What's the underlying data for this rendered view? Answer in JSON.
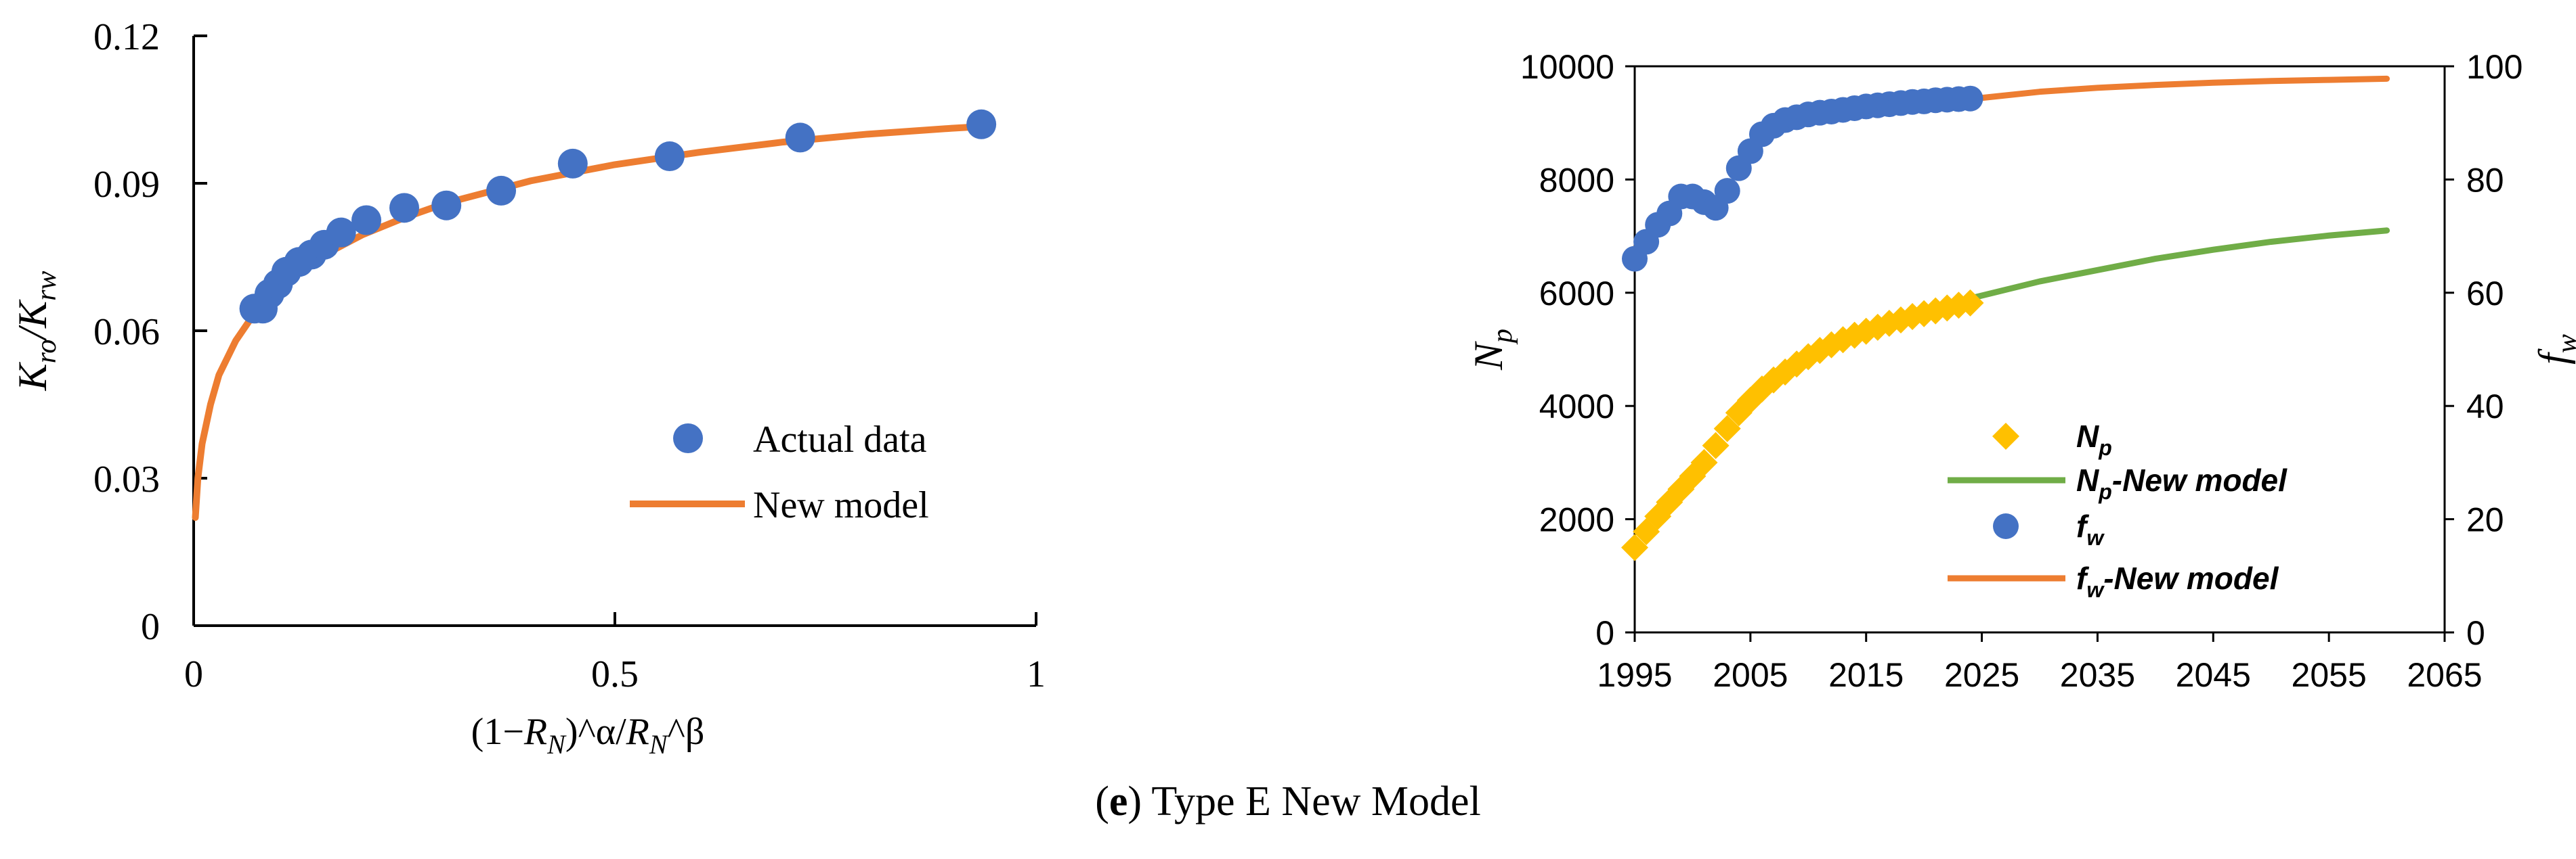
{
  "colors": {
    "blue": "#4472C4",
    "orange": "#ED7D31",
    "gold": "#FFC000",
    "green": "#70AD47",
    "axis": "#000000"
  },
  "caption": {
    "prefix": "(",
    "letter": "e",
    "rest": ") Type E New Model"
  },
  "chart_data": [
    {
      "type": "scatter",
      "x_label_parts": [
        "(1−",
        "R",
        "N",
        ")^α/",
        "R",
        "N",
        "^β"
      ],
      "y_label_parts": [
        "K",
        "ro",
        "/K",
        "rw"
      ],
      "xlim": [
        0,
        1
      ],
      "ylim": [
        0,
        0.12
      ],
      "x_ticks": [
        0,
        0.5,
        1
      ],
      "x_tick_labels": [
        "0",
        "0.5",
        "1"
      ],
      "y_ticks": [
        0,
        0.03,
        0.06,
        0.09,
        0.12
      ],
      "y_tick_labels": [
        "0",
        "0.03",
        "0.06",
        "0.09",
        "0.12"
      ],
      "grid": false,
      "legend_position": "center-right",
      "series": [
        {
          "name": "Actual data",
          "kind": "scatter",
          "color": "#4472C4",
          "x": [
            0.072,
            0.082,
            0.09,
            0.1,
            0.11,
            0.125,
            0.14,
            0.155,
            0.175,
            0.205,
            0.25,
            0.3,
            0.365,
            0.45,
            0.565,
            0.72,
            0.935
          ],
          "y": [
            0.0645,
            0.0645,
            0.0675,
            0.0695,
            0.072,
            0.074,
            0.0755,
            0.0775,
            0.08,
            0.0825,
            0.085,
            0.0855,
            0.0885,
            0.094,
            0.0955,
            0.0993,
            0.102
          ]
        },
        {
          "name": "New model",
          "kind": "line",
          "color": "#ED7D31",
          "x": [
            0.002,
            0.005,
            0.01,
            0.02,
            0.03,
            0.05,
            0.07,
            0.1,
            0.15,
            0.2,
            0.25,
            0.3,
            0.4,
            0.5,
            0.6,
            0.7,
            0.8,
            0.9,
            0.94
          ],
          "y": [
            0.022,
            0.03,
            0.037,
            0.045,
            0.051,
            0.058,
            0.063,
            0.0685,
            0.075,
            0.0795,
            0.083,
            0.086,
            0.0905,
            0.0938,
            0.0963,
            0.0984,
            0.1,
            0.1012,
            0.1016
          ]
        }
      ]
    },
    {
      "type": "scatter",
      "y_label": {
        "main": "N",
        "sub": "p"
      },
      "y2_label": {
        "main": "f",
        "sub": "w"
      },
      "xlim": [
        1995,
        2065
      ],
      "ylim": [
        0,
        10000
      ],
      "y2lim": [
        0,
        100
      ],
      "x_ticks": [
        1995,
        2005,
        2015,
        2025,
        2035,
        2045,
        2055,
        2065
      ],
      "x_tick_labels": [
        "1995",
        "2005",
        "2015",
        "2025",
        "2035",
        "2045",
        "2055",
        "2065"
      ],
      "y_ticks": [
        0,
        2000,
        4000,
        6000,
        8000,
        10000
      ],
      "y_tick_labels": [
        "0",
        "2000",
        "4000",
        "6000",
        "8000",
        "10000"
      ],
      "y2_ticks": [
        0,
        20,
        40,
        60,
        80,
        100
      ],
      "y2_tick_labels": [
        "0",
        "20",
        "40",
        "60",
        "80",
        "100"
      ],
      "grid": false,
      "legend_position": "bottom-right",
      "series": [
        {
          "name": "N_p",
          "label_main": "N",
          "label_sub": "p",
          "label_suffix": "",
          "kind": "diamond",
          "axis": "left",
          "color": "#FFC000",
          "x": [
            1995,
            1996,
            1997,
            1998,
            1999,
            2000,
            2001,
            2002,
            2003,
            2004,
            2005,
            2006,
            2007,
            2008,
            2009,
            2010,
            2011,
            2012,
            2013,
            2014,
            2015,
            2016,
            2017,
            2018,
            2019,
            2020,
            2021,
            2022,
            2023,
            2024
          ],
          "y": [
            1500,
            1780,
            2050,
            2300,
            2530,
            2760,
            3000,
            3300,
            3600,
            3880,
            4100,
            4300,
            4460,
            4600,
            4740,
            4870,
            4980,
            5080,
            5170,
            5250,
            5320,
            5390,
            5460,
            5520,
            5580,
            5630,
            5680,
            5730,
            5780,
            5820
          ]
        },
        {
          "name": "N_p-New model",
          "label_main": "N",
          "label_sub": "p",
          "label_suffix": "-New model",
          "kind": "line",
          "axis": "left",
          "color": "#70AD47",
          "x": [
            2024,
            2030,
            2035,
            2040,
            2045,
            2050,
            2055,
            2060
          ],
          "y": [
            5900,
            6200,
            6400,
            6600,
            6760,
            6900,
            7010,
            7100
          ]
        },
        {
          "name": "f_w",
          "label_main": "f",
          "label_sub": "w",
          "label_suffix": "",
          "kind": "circle",
          "axis": "right",
          "color": "#4472C4",
          "x": [
            1995,
            1996,
            1997,
            1998,
            1999,
            2000,
            2001,
            2002,
            2003,
            2004,
            2005,
            2006,
            2007,
            2008,
            2009,
            2010,
            2011,
            2012,
            2013,
            2014,
            2015,
            2016,
            2017,
            2018,
            2019,
            2020,
            2021,
            2022,
            2023,
            2024
          ],
          "y": [
            66,
            69,
            72,
            74,
            77,
            77,
            76,
            75,
            78,
            82,
            85,
            88,
            89.5,
            90.5,
            91,
            91.5,
            91.8,
            92,
            92.3,
            92.6,
            92.9,
            93.1,
            93.3,
            93.5,
            93.7,
            93.8,
            94,
            94.1,
            94.2,
            94.3
          ]
        },
        {
          "name": "f_w-New model",
          "label_main": "f",
          "label_sub": "w",
          "label_suffix": "-New model",
          "kind": "line",
          "axis": "right",
          "color": "#ED7D31",
          "x": [
            2024,
            2030,
            2035,
            2040,
            2045,
            2050,
            2055,
            2060
          ],
          "y": [
            94.2,
            95.5,
            96.2,
            96.7,
            97.1,
            97.4,
            97.6,
            97.8
          ]
        }
      ]
    }
  ]
}
